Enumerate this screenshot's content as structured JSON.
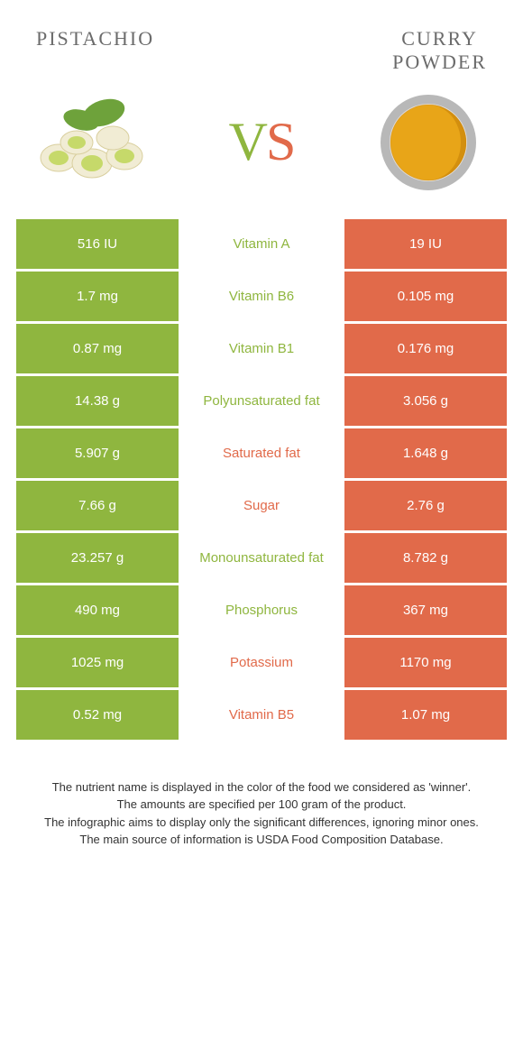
{
  "header": {
    "left_title": "PISTACHIO",
    "right_title_line1": "CURRY",
    "right_title_line2": "POWDER"
  },
  "vs": {
    "v": "V",
    "s": "S"
  },
  "colors": {
    "green": "#8fb63f",
    "orange": "#e16a4a",
    "green_text": "#8fb63f",
    "orange_text": "#e16a4a"
  },
  "rows": [
    {
      "label": "Vitamin A",
      "left": "516 IU",
      "right": "19 IU",
      "winner": "left"
    },
    {
      "label": "Vitamin B6",
      "left": "1.7 mg",
      "right": "0.105 mg",
      "winner": "left"
    },
    {
      "label": "Vitamin B1",
      "left": "0.87 mg",
      "right": "0.176 mg",
      "winner": "left"
    },
    {
      "label": "Polyunsaturated fat",
      "left": "14.38 g",
      "right": "3.056 g",
      "winner": "left"
    },
    {
      "label": "Saturated fat",
      "left": "5.907 g",
      "right": "1.648 g",
      "winner": "right"
    },
    {
      "label": "Sugar",
      "left": "7.66 g",
      "right": "2.76 g",
      "winner": "right"
    },
    {
      "label": "Monounsaturated fat",
      "left": "23.257 g",
      "right": "8.782 g",
      "winner": "left"
    },
    {
      "label": "Phosphorus",
      "left": "490 mg",
      "right": "367 mg",
      "winner": "left"
    },
    {
      "label": "Potassium",
      "left": "1025 mg",
      "right": "1170 mg",
      "winner": "right"
    },
    {
      "label": "Vitamin B5",
      "left": "0.52 mg",
      "right": "1.07 mg",
      "winner": "right"
    }
  ],
  "footer": {
    "line1": "The nutrient name is displayed in the color of the food we considered as 'winner'.",
    "line2": "The amounts are specified per 100 gram of the product.",
    "line3": "The infographic aims to display only the significant differences, ignoring minor ones.",
    "line4": "The main source of information is USDA Food Composition Database."
  }
}
